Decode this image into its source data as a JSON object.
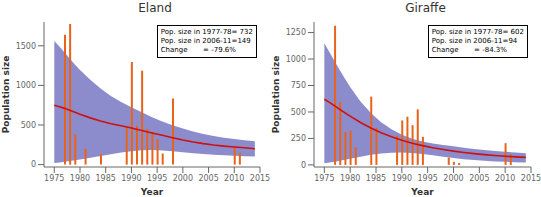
{
  "chart_data": [
    {
      "type": "bar",
      "title": "Eland",
      "xlabel": "Year",
      "ylabel": "Population size",
      "xlim": [
        1973,
        2015
      ],
      "ylim": [
        -30,
        1800
      ],
      "xticks": [
        1975,
        1980,
        1985,
        1990,
        1995,
        2000,
        2005,
        2010,
        2015
      ],
      "yticks": [
        0,
        500,
        1000,
        1500
      ],
      "annotation": "Pop. size in 1977-78= 732\nPop. size in 2006-11=149\nChange       = -79.6%",
      "series": [
        {
          "type": "area",
          "color": "#6666BB",
          "x": [
            1975,
            1976,
            1977,
            1978,
            1979,
            1980,
            1982,
            1984,
            1986,
            1988,
            1990,
            1992,
            1994,
            1996,
            1998,
            2000,
            2002,
            2004,
            2006,
            2008,
            2010,
            2012,
            2014
          ],
          "lower": [
            20,
            28,
            36,
            45,
            55,
            65,
            88,
            110,
            132,
            152,
            170,
            180,
            183,
            178,
            168,
            155,
            143,
            133,
            124,
            118,
            112,
            107,
            102
          ],
          "upper": [
            1560,
            1490,
            1415,
            1340,
            1265,
            1195,
            1070,
            960,
            865,
            790,
            725,
            660,
            598,
            545,
            498,
            455,
            418,
            388,
            362,
            340,
            323,
            308,
            295
          ]
        },
        {
          "type": "bar",
          "color": "#E8621A",
          "x": [
            1977,
            1978,
            1979,
            1981,
            1984,
            1989,
            1990,
            1991,
            1992,
            1993,
            1994,
            1995,
            1996,
            1998,
            2010,
            2011
          ],
          "values": [
            1640,
            1775,
            380,
            200,
            130,
            480,
            1295,
            490,
            1185,
            450,
            415,
            320,
            140,
            835,
            220,
            150
          ]
        },
        {
          "type": "line",
          "color": "#CC1111",
          "x": [
            1975,
            1976,
            1977,
            1978,
            1979,
            1980,
            1982,
            1984,
            1986,
            1988,
            1990,
            1992,
            1994,
            1996,
            1998,
            2000,
            2002,
            2004,
            2006,
            2008,
            2010,
            2012,
            2014
          ],
          "values": [
            750,
            730,
            710,
            685,
            660,
            635,
            590,
            550,
            515,
            490,
            462,
            430,
            400,
            370,
            340,
            310,
            285,
            265,
            248,
            234,
            222,
            212,
            200
          ]
        }
      ]
    },
    {
      "type": "bar",
      "title": "Giraffe",
      "xlabel": "Year",
      "ylabel": "Population size",
      "xlim": [
        1973,
        2015
      ],
      "ylim": [
        -20,
        1350
      ],
      "xticks": [
        1975,
        1980,
        1985,
        1990,
        1995,
        2000,
        2005,
        2010,
        2015
      ],
      "yticks": [
        0,
        250,
        500,
        750,
        1000,
        1250
      ],
      "annotation": "Pop. size in 1977-78= 602\nPop. size in 2006-11=94\nChange       = -84.3%",
      "series": [
        {
          "type": "area",
          "color": "#6666BB",
          "x": [
            1975,
            1976,
            1977,
            1978,
            1979,
            1980,
            1982,
            1984,
            1986,
            1988,
            1990,
            1992,
            1994,
            1996,
            1998,
            2000,
            2002,
            2004,
            2006,
            2008,
            2010,
            2012,
            2014
          ],
          "lower": [
            15,
            22,
            30,
            38,
            48,
            58,
            78,
            95,
            108,
            115,
            117,
            113,
            104,
            91,
            78,
            65,
            53,
            45,
            38,
            33,
            29,
            26,
            23
          ],
          "upper": [
            1150,
            1065,
            980,
            895,
            813,
            735,
            600,
            490,
            403,
            336,
            285,
            248,
            222,
            203,
            188,
            175,
            162,
            150,
            140,
            131,
            123,
            116,
            110
          ]
        },
        {
          "type": "bar",
          "color": "#E8621A",
          "x": [
            1977,
            1978,
            1979,
            1980,
            1981,
            1984,
            1985,
            1989,
            1990,
            1991,
            1992,
            1993,
            1994,
            1999,
            2000,
            2001,
            2010,
            2011
          ],
          "values": [
            1315,
            595,
            310,
            325,
            165,
            645,
            350,
            275,
            420,
            455,
            375,
            525,
            265,
            70,
            28,
            18,
            205,
            100
          ]
        },
        {
          "type": "line",
          "color": "#CC1111",
          "x": [
            1975,
            1976,
            1977,
            1978,
            1979,
            1980,
            1982,
            1984,
            1986,
            1988,
            1990,
            1992,
            1994,
            1996,
            1998,
            2000,
            2002,
            2004,
            2006,
            2008,
            2010,
            2012,
            2014
          ],
          "values": [
            620,
            590,
            558,
            525,
            492,
            460,
            400,
            348,
            303,
            265,
            233,
            205,
            182,
            162,
            145,
            130,
            117,
            106,
            97,
            89,
            82,
            76,
            71
          ]
        }
      ]
    }
  ]
}
